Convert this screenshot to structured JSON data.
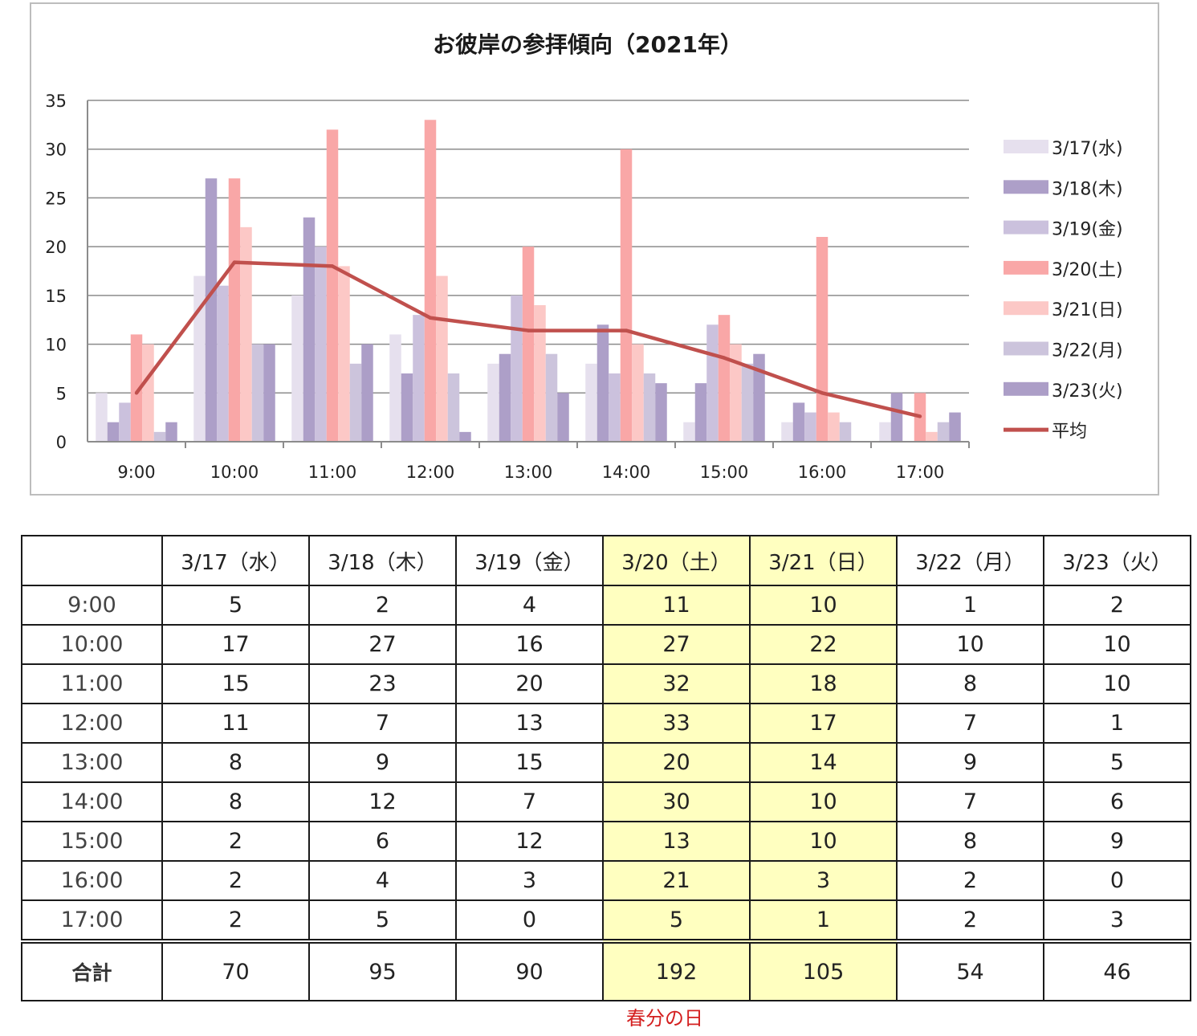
{
  "chart_data": {
    "type": "bar",
    "title": "お彼岸の参拝傾向（2021年）",
    "categories": [
      "9:00",
      "10:00",
      "11:00",
      "12:00",
      "13:00",
      "14:00",
      "15:00",
      "16:00",
      "17:00"
    ],
    "ylim": [
      0,
      35
    ],
    "yticks": [
      "0",
      "5",
      "10",
      "15",
      "20",
      "25",
      "30",
      "35"
    ],
    "grid": true,
    "legend_position": "right",
    "series": [
      {
        "name": "3/17(水)",
        "type": "bar",
        "color": "#e6e0ee",
        "values": [
          5,
          17,
          15,
          11,
          8,
          8,
          2,
          2,
          2
        ]
      },
      {
        "name": "3/18(木)",
        "type": "bar",
        "color": "#ad9fc8",
        "values": [
          2,
          27,
          23,
          7,
          9,
          12,
          6,
          4,
          5
        ]
      },
      {
        "name": "3/19(金)",
        "type": "bar",
        "color": "#cbc1dd",
        "values": [
          4,
          16,
          20,
          13,
          15,
          7,
          12,
          3,
          0
        ]
      },
      {
        "name": "3/20(土)",
        "type": "bar",
        "color": "#f9a7a7",
        "values": [
          11,
          27,
          32,
          33,
          20,
          30,
          13,
          21,
          5
        ]
      },
      {
        "name": "3/21(日)",
        "type": "bar",
        "color": "#fcc8c6",
        "values": [
          10,
          22,
          18,
          17,
          14,
          10,
          10,
          3,
          1
        ]
      },
      {
        "name": "3/22(月)",
        "type": "bar",
        "color": "#ccc4dc",
        "values": [
          1,
          10,
          8,
          7,
          9,
          7,
          8,
          2,
          2
        ]
      },
      {
        "name": "3/23(火)",
        "type": "bar",
        "color": "#ac9ec7",
        "values": [
          2,
          10,
          10,
          1,
          5,
          6,
          9,
          0,
          3
        ]
      },
      {
        "name": "平均",
        "type": "line",
        "color": "#c0504d",
        "values": [
          5,
          18.4,
          18,
          12.7,
          11.4,
          11.4,
          8.6,
          5,
          2.6
        ]
      }
    ]
  },
  "table": {
    "headers": [
      "3/17（水）",
      "3/18（木）",
      "3/19（金）",
      "3/20（土）",
      "3/21（日）",
      "3/22（月）",
      "3/23（火）"
    ],
    "highlight_columns": [
      3,
      4
    ],
    "highlight_color": "#ffffc0",
    "rows": [
      {
        "label": "9:00",
        "values": [
          "5",
          "2",
          "4",
          "11",
          "10",
          "1",
          "2"
        ]
      },
      {
        "label": "10:00",
        "values": [
          "17",
          "27",
          "16",
          "27",
          "22",
          "10",
          "10"
        ]
      },
      {
        "label": "11:00",
        "values": [
          "15",
          "23",
          "20",
          "32",
          "18",
          "8",
          "10"
        ]
      },
      {
        "label": "12:00",
        "values": [
          "11",
          "7",
          "13",
          "33",
          "17",
          "7",
          "1"
        ]
      },
      {
        "label": "13:00",
        "values": [
          "8",
          "9",
          "15",
          "20",
          "14",
          "9",
          "5"
        ]
      },
      {
        "label": "14:00",
        "values": [
          "8",
          "12",
          "7",
          "30",
          "10",
          "7",
          "6"
        ]
      },
      {
        "label": "15:00",
        "values": [
          "2",
          "6",
          "12",
          "13",
          "10",
          "8",
          "9"
        ]
      },
      {
        "label": "16:00",
        "values": [
          "2",
          "4",
          "3",
          "21",
          "3",
          "2",
          "0"
        ]
      },
      {
        "label": "17:00",
        "values": [
          "2",
          "5",
          "0",
          "5",
          "1",
          "2",
          "3"
        ]
      }
    ],
    "total": {
      "label": "合計",
      "values": [
        "70",
        "95",
        "90",
        "192",
        "105",
        "54",
        "46"
      ]
    }
  },
  "note": {
    "text": "春分の日",
    "color": "#d42020"
  }
}
